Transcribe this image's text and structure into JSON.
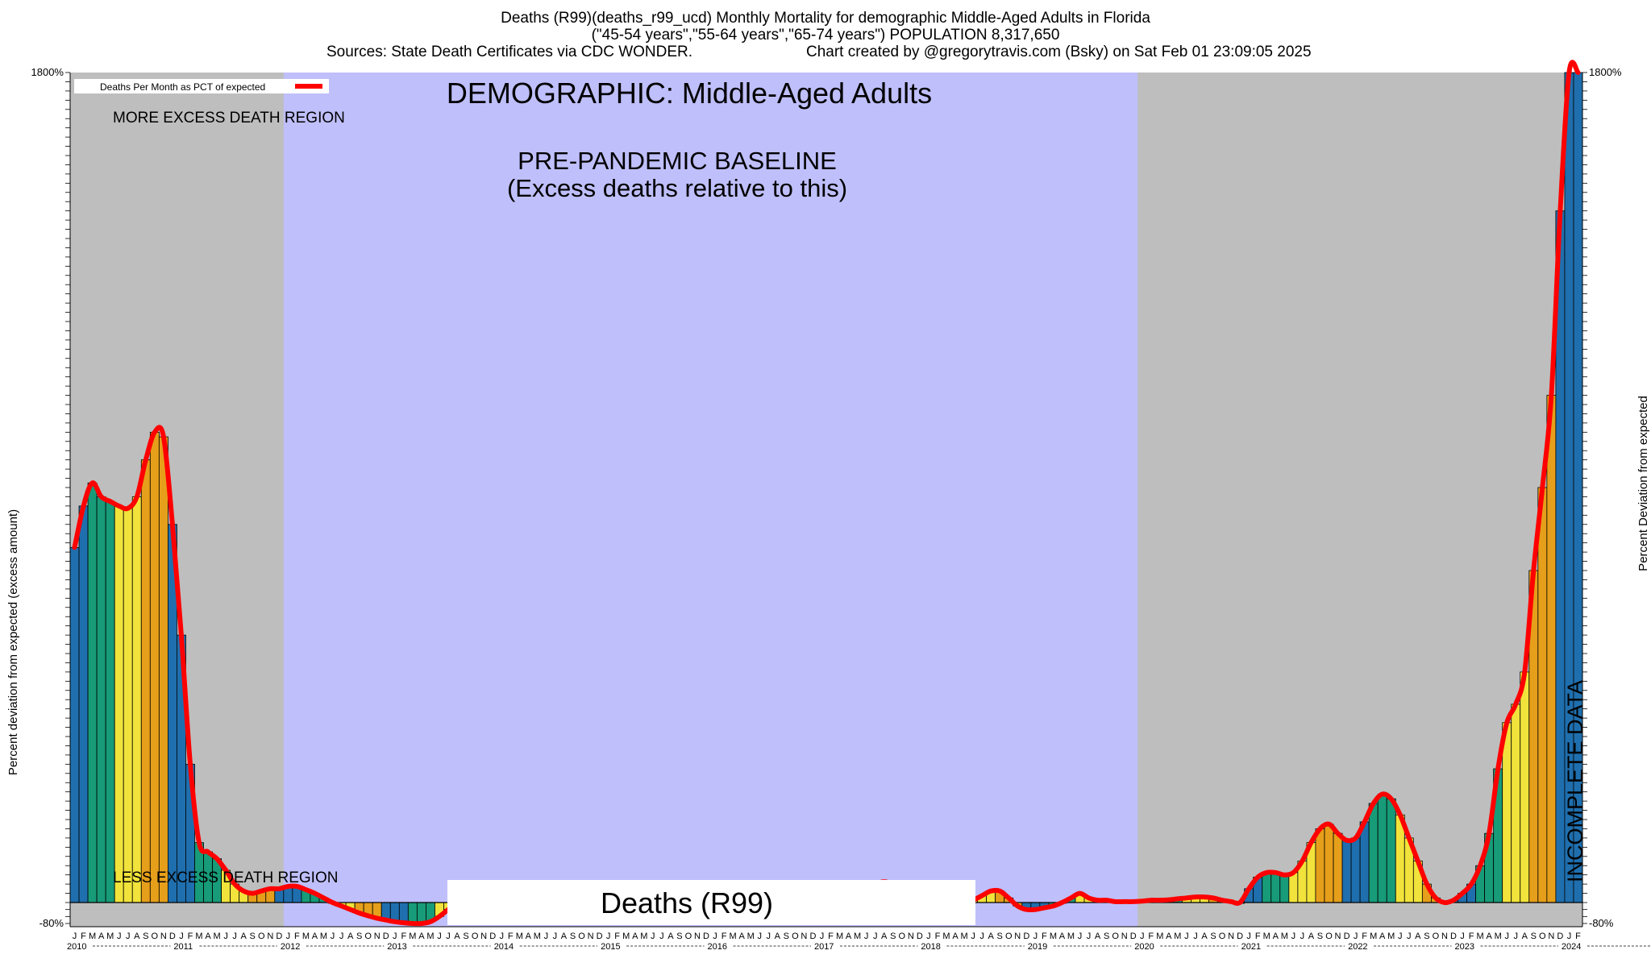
{
  "header": {
    "title": "Deaths (R99)(deaths_r99_ucd) Monthly Mortality for demographic Middle-Aged Adults in Florida",
    "subtitle": "(\"45-54 years\",\"55-64 years\",\"65-74 years\") POPULATION 8,317,650",
    "sources": "Sources: State Death Certificates via CDC WONDER.",
    "credit": "Chart created by @gregorytravis.com (Bsky) on Sat Feb 01 23:09:05 2025"
  },
  "colors": {
    "background_region": "#bebebe",
    "baseline_region": "#bfbffb",
    "line": "#ff0000",
    "winter": "#1f6fae",
    "spring": "#179b78",
    "summer": "#f1e33b",
    "fall": "#e69f1a",
    "incomplete_hatch": "#555555"
  },
  "chart_data": {
    "type": "bar",
    "title": "DEMOGRAPHIC: Middle-Aged Adults",
    "series_label": "Deaths (R99)",
    "legend": {
      "label": "Deaths Per Month as PCT of expected",
      "placement": "top-left"
    },
    "ylabel_left": "Percent deviation from expected (excess amount)",
    "ylabel_right": "Percent Deviation from expected",
    "annotations": {
      "more_region": "MORE EXCESS DEATH REGION",
      "less_region": "LESS EXCESS DEATH REGION",
      "baseline_title": "PRE-PANDEMIC BASELINE",
      "baseline_sub": "(Excess deaths relative to this)",
      "incomplete": "INCOMPLETE DATA"
    },
    "ytick_top": "1800%",
    "ytick_bottom": "-80%",
    "ylim": [
      -60,
      1800
    ],
    "baseline_period": [
      "2012-01",
      "2019-12"
    ],
    "incomplete_period": [
      "2024-06",
      "2024-12"
    ],
    "x_month_letters": [
      "J",
      "F",
      "M",
      "A",
      "M",
      "J",
      "J",
      "A",
      "S",
      "O",
      "N",
      "D"
    ],
    "years": [
      "2010",
      "2011",
      "2012",
      "2013",
      "2014",
      "2015",
      "2016",
      "2017",
      "2018",
      "2019",
      "2020",
      "2021",
      "2022",
      "2023",
      "2024"
    ],
    "values": [
      770,
      860,
      910,
      880,
      870,
      860,
      855,
      880,
      960,
      1020,
      1010,
      820,
      580,
      300,
      130,
      110,
      95,
      70,
      40,
      25,
      20,
      25,
      30,
      30,
      35,
      35,
      28,
      20,
      10,
      0,
      -10,
      -20,
      -30,
      -38,
      -45,
      -50,
      -55,
      -58,
      -60,
      -60,
      -55,
      -40,
      -20,
      0,
      5,
      5,
      5,
      0,
      -5,
      -10,
      -20,
      -30,
      -35,
      -30,
      -25,
      -20,
      -15,
      -10,
      -5,
      0,
      -5,
      -10,
      -15,
      -20,
      -25,
      -20,
      -15,
      -10,
      -5,
      0,
      0,
      -5,
      -8,
      -10,
      -15,
      -10,
      -5,
      0,
      5,
      10,
      15,
      15,
      10,
      5,
      0,
      5,
      10,
      15,
      20,
      30,
      40,
      45,
      40,
      30,
      20,
      10,
      0,
      -5,
      -10,
      -5,
      0,
      5,
      15,
      25,
      25,
      10,
      -10,
      -20,
      -20,
      -15,
      -10,
      0,
      10,
      20,
      10,
      5,
      5,
      2,
      2,
      2,
      3,
      5,
      5,
      6,
      8,
      10,
      12,
      12,
      10,
      5,
      2,
      0,
      30,
      55,
      65,
      65,
      60,
      65,
      90,
      130,
      160,
      170,
      150,
      135,
      140,
      175,
      215,
      235,
      225,
      190,
      140,
      90,
      40,
      10,
      0,
      5,
      20,
      40,
      80,
      150,
      290,
      390,
      430,
      500,
      720,
      900,
      1100,
      1500,
      1800,
      1800
    ]
  }
}
